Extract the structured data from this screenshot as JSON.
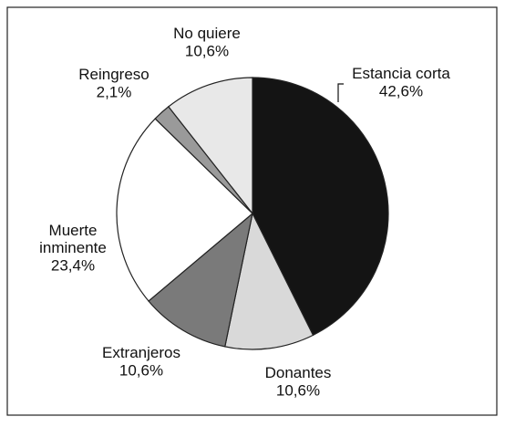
{
  "chart_data": {
    "type": "pie",
    "categories": [
      "Estancia corta",
      "Donantes",
      "Extranjeros",
      "Muerte inminente",
      "Reingreso",
      "No quiere"
    ],
    "values": [
      42.6,
      10.6,
      10.6,
      23.4,
      2.1,
      10.6
    ],
    "value_labels": [
      "42,6%",
      "10,6%",
      "10,6%",
      "23,4%",
      "2,1%",
      "10,6%"
    ],
    "colors": [
      "#141414",
      "#d9d9d9",
      "#7a7a7a",
      "#ffffff",
      "#9a9a9a",
      "#e8e8e8"
    ]
  }
}
